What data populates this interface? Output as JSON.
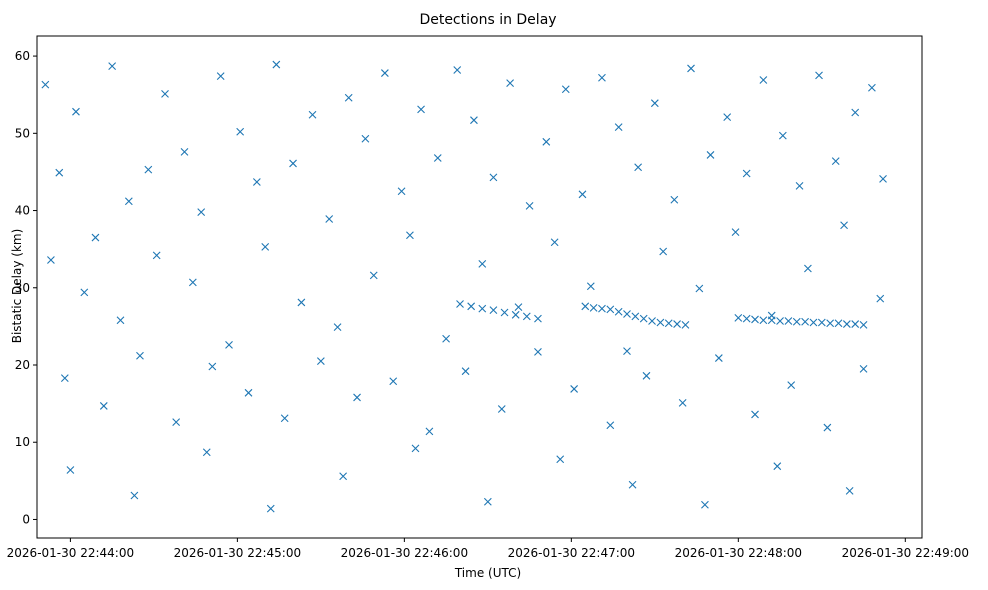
{
  "chart_data": {
    "type": "scatter",
    "title": "Detections in Delay",
    "xlabel": "Time (UTC)",
    "ylabel": "Bistatic Delay (km)",
    "marker": "x",
    "marker_color": "#1f77b4",
    "x_axis": {
      "type": "datetime",
      "lim": [
        "2026-01-30 22:43:48",
        "2026-01-30 22:49:06"
      ],
      "ticks": [
        "2026-01-30 22:44:00",
        "2026-01-30 22:45:00",
        "2026-01-30 22:46:00",
        "2026-01-30 22:47:00",
        "2026-01-30 22:48:00",
        "2026-01-30 22:49:00"
      ],
      "tick_labels": [
        "2026-01-30 22:44:00",
        "2026-01-30 22:45:00",
        "2026-01-30 22:46:00",
        "2026-01-30 22:47:00",
        "2026-01-30 22:48:00",
        "2026-01-30 22:49:00"
      ]
    },
    "y_axis": {
      "lim": [
        -2.4,
        62.6
      ],
      "ticks": [
        0,
        10,
        20,
        30,
        40,
        50,
        60
      ]
    },
    "grid": false,
    "legend": "none",
    "series": [
      {
        "x": [
          "2026-01-30 22:43:51",
          "2026-01-30 22:43:56",
          "2026-01-30 22:44:02",
          "2026-01-30 22:44:09",
          "2026-01-30 22:44:15",
          "2026-01-30 22:44:21",
          "2026-01-30 22:44:28",
          "2026-01-30 22:44:34",
          "2026-01-30 22:44:41",
          "2026-01-30 22:44:47",
          "2026-01-30 22:44:54",
          "2026-01-30 22:45:01",
          "2026-01-30 22:45:07",
          "2026-01-30 22:45:14",
          "2026-01-30 22:45:20",
          "2026-01-30 22:45:27",
          "2026-01-30 22:45:33",
          "2026-01-30 22:45:40",
          "2026-01-30 22:45:46",
          "2026-01-30 22:45:53",
          "2026-01-30 22:45:59",
          "2026-01-30 22:46:06",
          "2026-01-30 22:46:12",
          "2026-01-30 22:46:19",
          "2026-01-30 22:46:25",
          "2026-01-30 22:46:32",
          "2026-01-30 22:46:38",
          "2026-01-30 22:46:45",
          "2026-01-30 22:46:51",
          "2026-01-30 22:46:58",
          "2026-01-30 22:47:04",
          "2026-01-30 22:47:11",
          "2026-01-30 22:47:17",
          "2026-01-30 22:47:24",
          "2026-01-30 22:47:30",
          "2026-01-30 22:47:37",
          "2026-01-30 22:47:43",
          "2026-01-30 22:47:50",
          "2026-01-30 22:47:56",
          "2026-01-30 22:48:03",
          "2026-01-30 22:48:09",
          "2026-01-30 22:48:16",
          "2026-01-30 22:48:22",
          "2026-01-30 22:48:29",
          "2026-01-30 22:48:35",
          "2026-01-30 22:48:42",
          "2026-01-30 22:48:48",
          "2026-01-30 22:48:52",
          "2026-01-30 22:43:53",
          "2026-01-30 22:44:05",
          "2026-01-30 22:44:18",
          "2026-01-30 22:44:31",
          "2026-01-30 22:44:44",
          "2026-01-30 22:44:57",
          "2026-01-30 22:45:10",
          "2026-01-30 22:45:23",
          "2026-01-30 22:45:36",
          "2026-01-30 22:45:49",
          "2026-01-30 22:46:02",
          "2026-01-30 22:46:15",
          "2026-01-30 22:46:28",
          "2026-01-30 22:46:41",
          "2026-01-30 22:46:54",
          "2026-01-30 22:47:07",
          "2026-01-30 22:47:20",
          "2026-01-30 22:47:33",
          "2026-01-30 22:47:46",
          "2026-01-30 22:47:59",
          "2026-01-30 22:48:12",
          "2026-01-30 22:48:25",
          "2026-01-30 22:48:38",
          "2026-01-30 22:48:51",
          "2026-01-30 22:43:58",
          "2026-01-30 22:44:12",
          "2026-01-30 22:44:25",
          "2026-01-30 22:44:38",
          "2026-01-30 22:44:51",
          "2026-01-30 22:45:04",
          "2026-01-30 22:45:17",
          "2026-01-30 22:45:30",
          "2026-01-30 22:45:43",
          "2026-01-30 22:45:56",
          "2026-01-30 22:46:09",
          "2026-01-30 22:46:22",
          "2026-01-30 22:46:35",
          "2026-01-30 22:46:48",
          "2026-01-30 22:47:01",
          "2026-01-30 22:47:14",
          "2026-01-30 22:47:27",
          "2026-01-30 22:47:40",
          "2026-01-30 22:47:53",
          "2026-01-30 22:48:06",
          "2026-01-30 22:48:19",
          "2026-01-30 22:48:32",
          "2026-01-30 22:48:45",
          "2026-01-30 22:44:00",
          "2026-01-30 22:44:23",
          "2026-01-30 22:44:49",
          "2026-01-30 22:45:12",
          "2026-01-30 22:45:38",
          "2026-01-30 22:46:04",
          "2026-01-30 22:46:30",
          "2026-01-30 22:46:56",
          "2026-01-30 22:47:22",
          "2026-01-30 22:47:48",
          "2026-01-30 22:48:14",
          "2026-01-30 22:48:40",
          "2026-01-30 22:47:05",
          "2026-01-30 22:47:08",
          "2026-01-30 22:47:11",
          "2026-01-30 22:47:14",
          "2026-01-30 22:47:17",
          "2026-01-30 22:47:20",
          "2026-01-30 22:47:23",
          "2026-01-30 22:47:26",
          "2026-01-30 22:47:29",
          "2026-01-30 22:47:32",
          "2026-01-30 22:47:35",
          "2026-01-30 22:47:38",
          "2026-01-30 22:47:41",
          "2026-01-30 22:48:00",
          "2026-01-30 22:48:03",
          "2026-01-30 22:48:06",
          "2026-01-30 22:48:09",
          "2026-01-30 22:48:12",
          "2026-01-30 22:48:15",
          "2026-01-30 22:48:18",
          "2026-01-30 22:48:21",
          "2026-01-30 22:48:24",
          "2026-01-30 22:48:27",
          "2026-01-30 22:48:30",
          "2026-01-30 22:48:33",
          "2026-01-30 22:48:36",
          "2026-01-30 22:48:39",
          "2026-01-30 22:48:42",
          "2026-01-30 22:48:45",
          "2026-01-30 22:46:20",
          "2026-01-30 22:46:24",
          "2026-01-30 22:46:28",
          "2026-01-30 22:46:32",
          "2026-01-30 22:46:36",
          "2026-01-30 22:46:40",
          "2026-01-30 22:46:44",
          "2026-01-30 22:46:48"
        ],
        "y": [
          56.3,
          44.9,
          52.8,
          36.5,
          58.7,
          41.2,
          45.3,
          55.1,
          47.6,
          39.8,
          57.4,
          50.2,
          43.7,
          58.9,
          46.1,
          52.4,
          38.9,
          54.6,
          49.3,
          57.8,
          42.5,
          53.1,
          46.8,
          58.2,
          51.7,
          44.3,
          56.5,
          40.6,
          48.9,
          55.7,
          42.1,
          57.2,
          50.8,
          45.6,
          53.9,
          41.4,
          58.4,
          47.2,
          52.1,
          44.8,
          56.9,
          49.7,
          43.2,
          57.5,
          46.4,
          52.7,
          55.9,
          44.1,
          33.6,
          29.4,
          25.8,
          34.2,
          30.7,
          22.6,
          35.3,
          28.1,
          24.9,
          31.6,
          36.8,
          23.4,
          33.1,
          27.5,
          35.9,
          30.2,
          21.8,
          34.7,
          29.9,
          37.2,
          26.4,
          32.5,
          38.1,
          28.6,
          18.3,
          14.7,
          21.2,
          12.6,
          19.8,
          16.4,
          13.1,
          20.5,
          15.8,
          17.9,
          11.4,
          19.2,
          14.3,
          21.7,
          16.9,
          12.2,
          18.6,
          15.1,
          20.9,
          13.6,
          17.4,
          11.9,
          19.5,
          6.4,
          3.1,
          8.7,
          1.4,
          5.6,
          9.2,
          2.3,
          7.8,
          4.5,
          1.9,
          6.9,
          3.7,
          27.6,
          27.4,
          27.3,
          27.2,
          26.9,
          26.6,
          26.3,
          26.0,
          25.7,
          25.5,
          25.4,
          25.3,
          25.2,
          26.1,
          26.0,
          25.9,
          25.8,
          25.8,
          25.7,
          25.7,
          25.6,
          25.6,
          25.5,
          25.5,
          25.4,
          25.4,
          25.3,
          25.3,
          25.2,
          27.9,
          27.6,
          27.3,
          27.1,
          26.8,
          26.5,
          26.3,
          26.0
        ]
      }
    ]
  }
}
